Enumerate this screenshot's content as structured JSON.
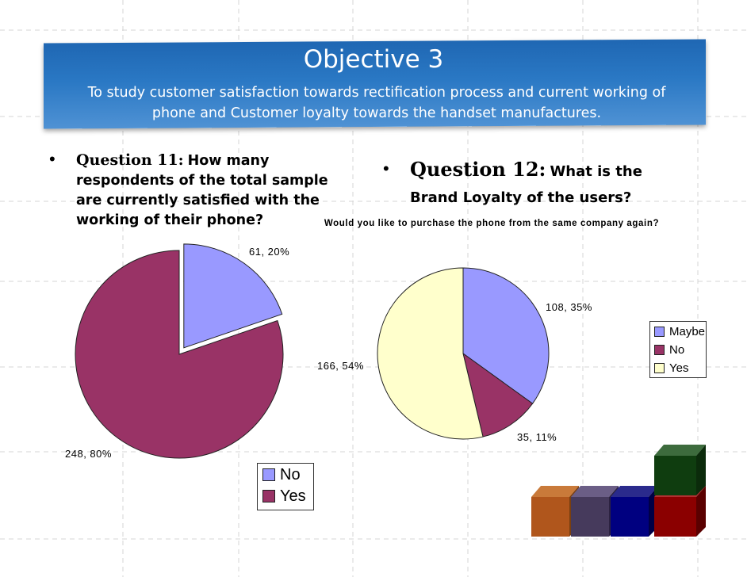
{
  "header": {
    "title": "Objective 3",
    "subtitle": "To study customer satisfaction towards rectification process and current working of phone and Customer loyalty towards the handset manufactures."
  },
  "question11": {
    "bullet": "•",
    "heading": "Question 11:",
    "text": "How many respondents of the total sample are currently satisfied with the working of their phone?"
  },
  "question12": {
    "bullet": "•",
    "heading": "Question 12:",
    "text": "What is the Brand Loyalty of the users?"
  },
  "legend1": {
    "items": [
      "No",
      "Yes"
    ]
  },
  "legend2": {
    "items": [
      "Maybe",
      "No",
      "Yes"
    ]
  },
  "colors": {
    "banner": "#2a78c4",
    "periwinkle": "#9999ff",
    "plum": "#993366",
    "cream": "#ffffcc"
  },
  "chart_data": [
    {
      "type": "pie",
      "title": "",
      "exploded": "No",
      "slices": [
        {
          "label": "No",
          "value": 61,
          "percent": 20,
          "display": "61, 20%",
          "color": "#9999ff"
        },
        {
          "label": "Yes",
          "value": 248,
          "percent": 80,
          "display": "248, 80%",
          "color": "#993366"
        }
      ],
      "legend_position": "bottom-right"
    },
    {
      "type": "pie",
      "title": "Would you like to purchase the phone from the same company again?",
      "slices": [
        {
          "label": "Maybe",
          "value": 108,
          "percent": 35,
          "display": "108, 35%",
          "color": "#9999ff"
        },
        {
          "label": "No",
          "value": 35,
          "percent": 11,
          "display": "35, 11%",
          "color": "#993366"
        },
        {
          "label": "Yes",
          "value": 166,
          "percent": 54,
          "display": "166, 54%",
          "color": "#ffffcc"
        }
      ],
      "legend_position": "right"
    }
  ]
}
